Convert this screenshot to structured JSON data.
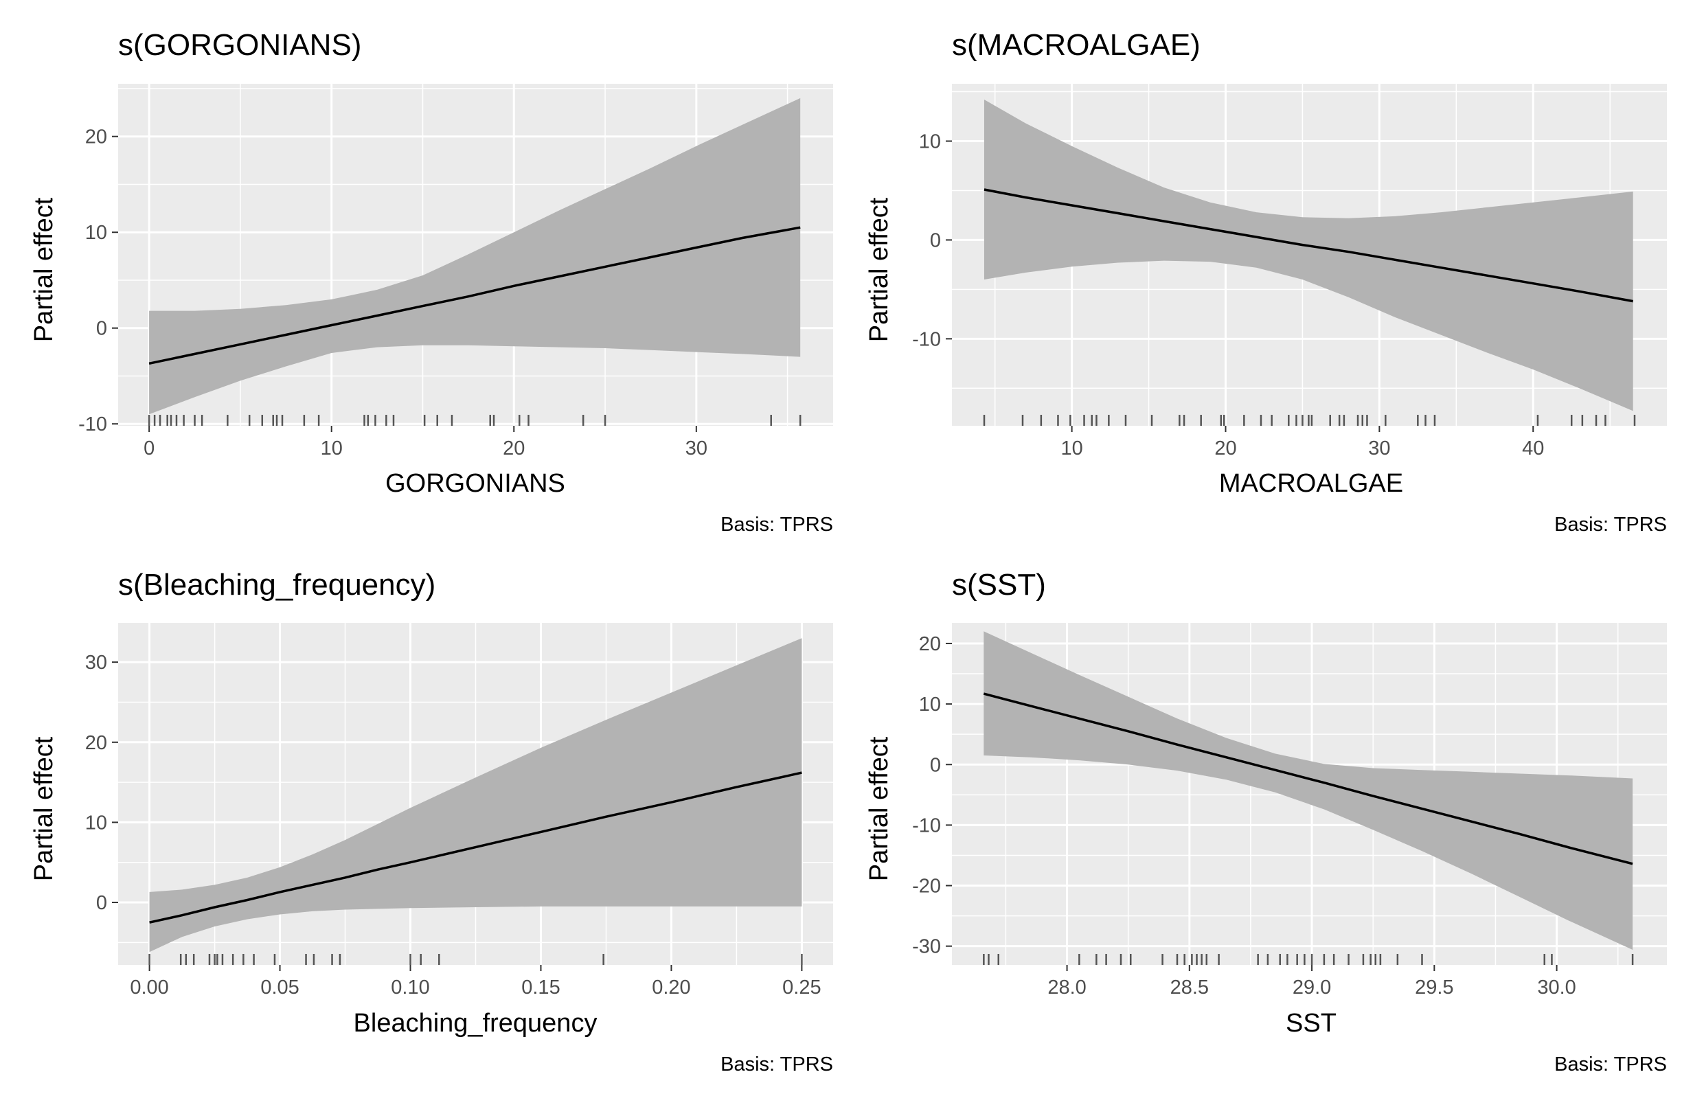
{
  "figure": {
    "type": "gam-partial-effects",
    "colors": {
      "panel_bg": "#ebebeb",
      "grid": "#ffffff",
      "ribbon": "#b3b3b3",
      "line": "#000000",
      "rug": "#222222",
      "tick_text": "#4d4d4d"
    }
  },
  "chart_data": [
    {
      "type": "line",
      "title": "s(GORGONIANS)",
      "xlabel": "GORGONIANS",
      "ylabel": "Partial effect",
      "caption": "Basis: TPRS",
      "xlim": [
        -1.7,
        37.5
      ],
      "ylim": [
        -10.2,
        25.5
      ],
      "xticks": [
        0,
        10,
        20,
        30
      ],
      "xtick_labels": [
        "0",
        "10",
        "20",
        "30"
      ],
      "yticks": [
        -10,
        0,
        10,
        20
      ],
      "ytick_labels": [
        "-10",
        "0",
        "10",
        "20"
      ],
      "grid": true,
      "x": [
        0,
        2.5,
        5,
        7.5,
        10,
        12.5,
        15,
        17.5,
        20,
        22.5,
        25,
        27.5,
        30,
        32.5,
        35.7
      ],
      "fit": [
        -3.7,
        -2.7,
        -1.7,
        -0.7,
        0.3,
        1.3,
        2.3,
        3.3,
        4.4,
        5.4,
        6.4,
        7.4,
        8.4,
        9.4,
        10.5
      ],
      "upper": [
        1.8,
        1.8,
        2.0,
        2.4,
        3.0,
        4.0,
        5.5,
        7.7,
        10.0,
        12.3,
        14.5,
        16.7,
        19.0,
        21.2,
        24.0
      ],
      "lower": [
        -9.0,
        -7.2,
        -5.5,
        -4.0,
        -2.6,
        -2.0,
        -1.8,
        -1.8,
        -1.9,
        -2.0,
        -2.1,
        -2.3,
        -2.5,
        -2.7,
        -3.0
      ],
      "rug": [
        0,
        0.3,
        0.6,
        1.0,
        1.2,
        1.5,
        1.9,
        2.5,
        2.9,
        4.3,
        5.5,
        6.2,
        6.8,
        7.0,
        7.3,
        8.5,
        9.3,
        11.8,
        12.0,
        12.4,
        13.0,
        13.4,
        15.1,
        15.8,
        16.6,
        18.7,
        18.9,
        20.3,
        20.8,
        23.8,
        25.0,
        34.1,
        35.7
      ]
    },
    {
      "type": "line",
      "title": "s(MACROALGAE)",
      "xlabel": "MACROALGAE",
      "ylabel": "Partial effect",
      "caption": "Basis: TPRS",
      "xlim": [
        2.2,
        48.7
      ],
      "ylim": [
        -18.8,
        15.8
      ],
      "xticks": [
        10,
        20,
        30,
        40
      ],
      "xtick_labels": [
        "10",
        "20",
        "30",
        "40"
      ],
      "yticks": [
        -10,
        0,
        10
      ],
      "ytick_labels": [
        "-10",
        "0",
        "10"
      ],
      "grid": true,
      "x": [
        4.3,
        7,
        10,
        13,
        16,
        19,
        22,
        25,
        28,
        31,
        34,
        37,
        40,
        43,
        46.5
      ],
      "fit": [
        5.1,
        4.3,
        3.5,
        2.7,
        1.9,
        1.1,
        0.3,
        -0.5,
        -1.2,
        -2.0,
        -2.8,
        -3.6,
        -4.4,
        -5.2,
        -6.2
      ],
      "upper": [
        14.2,
        11.8,
        9.5,
        7.3,
        5.3,
        3.8,
        2.8,
        2.3,
        2.2,
        2.4,
        2.8,
        3.3,
        3.8,
        4.3,
        4.9
      ],
      "lower": [
        -4.0,
        -3.3,
        -2.7,
        -2.3,
        -2.1,
        -2.2,
        -2.8,
        -4.0,
        -5.8,
        -7.8,
        -9.6,
        -11.4,
        -13.1,
        -15.0,
        -17.3
      ],
      "rug": [
        4.3,
        6.8,
        8.0,
        9.1,
        9.9,
        10.8,
        11.3,
        11.6,
        12.4,
        13.5,
        15.2,
        17.0,
        17.3,
        18.4,
        19.7,
        19.9,
        21.2,
        22.3,
        23.0,
        24.1,
        24.6,
        25.0,
        25.4,
        25.6,
        26.8,
        27.4,
        27.7,
        28.6,
        28.9,
        29.2,
        30.4,
        32.5,
        33.0,
        33.6,
        40.3,
        42.5,
        43.2,
        44.1,
        44.7,
        46.6
      ]
    },
    {
      "type": "line",
      "title": "s(Bleaching_frequency)",
      "xlabel": "Bleaching_frequency",
      "ylabel": "Partial effect",
      "caption": "Basis: TPRS",
      "xlim": [
        -0.012,
        0.262
      ],
      "ylim": [
        -7.8,
        34.9
      ],
      "xticks": [
        0,
        0.05,
        0.1,
        0.15,
        0.2,
        0.25
      ],
      "xtick_labels": [
        "0.00",
        "0.05",
        "0.10",
        "0.15",
        "0.20",
        "0.25"
      ],
      "yticks": [
        0,
        10,
        20,
        30
      ],
      "ytick_labels": [
        "0",
        "10",
        "20",
        "30"
      ],
      "grid": true,
      "x": [
        0,
        0.0125,
        0.025,
        0.0375,
        0.05,
        0.0625,
        0.075,
        0.0875,
        0.1,
        0.125,
        0.15,
        0.175,
        0.2,
        0.225,
        0.25
      ],
      "fit": [
        -2.5,
        -1.6,
        -0.6,
        0.3,
        1.3,
        2.2,
        3.1,
        4.1,
        5.0,
        6.9,
        8.8,
        10.7,
        12.5,
        14.4,
        16.2
      ],
      "upper": [
        1.3,
        1.6,
        2.2,
        3.1,
        4.4,
        6.0,
        7.8,
        9.8,
        11.8,
        15.6,
        19.3,
        22.8,
        26.2,
        29.6,
        33.0
      ],
      "lower": [
        -6.2,
        -4.3,
        -3.0,
        -2.1,
        -1.5,
        -1.1,
        -0.9,
        -0.8,
        -0.7,
        -0.6,
        -0.5,
        -0.5,
        -0.5,
        -0.5,
        -0.5
      ],
      "rug": [
        0,
        0.012,
        0.014,
        0.017,
        0.023,
        0.025,
        0.026,
        0.028,
        0.032,
        0.036,
        0.04,
        0.048,
        0.06,
        0.063,
        0.07,
        0.073,
        0.1,
        0.104,
        0.111,
        0.174,
        0.25
      ]
    },
    {
      "type": "line",
      "title": "s(SST)",
      "xlabel": "SST",
      "ylabel": "Partial effect",
      "caption": "Basis: TPRS",
      "xlim": [
        27.53,
        30.45
      ],
      "ylim": [
        -33.1,
        23.4
      ],
      "xticks": [
        28.0,
        28.5,
        29.0,
        29.5,
        30.0
      ],
      "xtick_labels": [
        "28.0",
        "28.5",
        "29.0",
        "29.5",
        "30.0"
      ],
      "yticks": [
        -30,
        -20,
        -10,
        0,
        10,
        20
      ],
      "ytick_labels": [
        "-30",
        "-20",
        "-10",
        "0",
        "10",
        "20"
      ],
      "grid": true,
      "x": [
        27.66,
        27.85,
        28.05,
        28.25,
        28.45,
        28.65,
        28.85,
        29.05,
        29.25,
        29.45,
        29.65,
        29.85,
        30.05,
        30.31
      ],
      "fit": [
        11.7,
        9.7,
        7.6,
        5.5,
        3.3,
        1.2,
        -0.9,
        -3.0,
        -5.2,
        -7.3,
        -9.4,
        -11.5,
        -13.7,
        -16.4
      ],
      "upper": [
        22.0,
        18.5,
        14.8,
        11.2,
        7.6,
        4.4,
        1.8,
        0.1,
        -0.6,
        -0.9,
        -1.2,
        -1.5,
        -1.8,
        -2.3
      ],
      "lower": [
        1.5,
        1.2,
        0.7,
        0.0,
        -1.0,
        -2.5,
        -4.6,
        -7.4,
        -10.8,
        -14.3,
        -18.0,
        -21.9,
        -25.8,
        -30.6
      ],
      "rug": [
        27.66,
        27.68,
        27.72,
        28.05,
        28.12,
        28.16,
        28.22,
        28.26,
        28.39,
        28.45,
        28.48,
        28.51,
        28.53,
        28.55,
        28.57,
        28.62,
        28.78,
        28.82,
        28.87,
        28.9,
        28.94,
        28.97,
        29.0,
        29.05,
        29.09,
        29.15,
        29.21,
        29.24,
        29.26,
        29.28,
        29.35,
        29.45,
        29.95,
        29.98,
        30.31
      ]
    }
  ]
}
